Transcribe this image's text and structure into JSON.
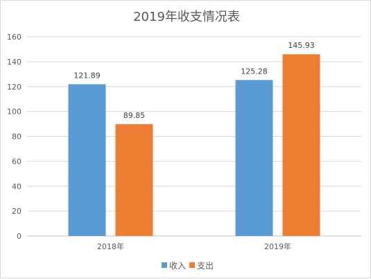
{
  "chart_data": {
    "type": "bar",
    "title": "2019年收支情况表",
    "categories": [
      "2018年",
      "2019年"
    ],
    "series": [
      {
        "name": "收入",
        "values": [
          121.89,
          125.28
        ],
        "color": "#5b9bd5"
      },
      {
        "name": "支出",
        "values": [
          89.85,
          145.93
        ],
        "color": "#ed7d31"
      }
    ],
    "ylim": [
      0,
      160
    ],
    "yticks": [
      "0",
      "20",
      "40",
      "60",
      "80",
      "100",
      "120",
      "140",
      "160"
    ],
    "data_labels": [
      [
        "121.89",
        "125.28"
      ],
      [
        "89.85",
        "145.93"
      ]
    ],
    "grid": true,
    "legend": "bottom"
  }
}
